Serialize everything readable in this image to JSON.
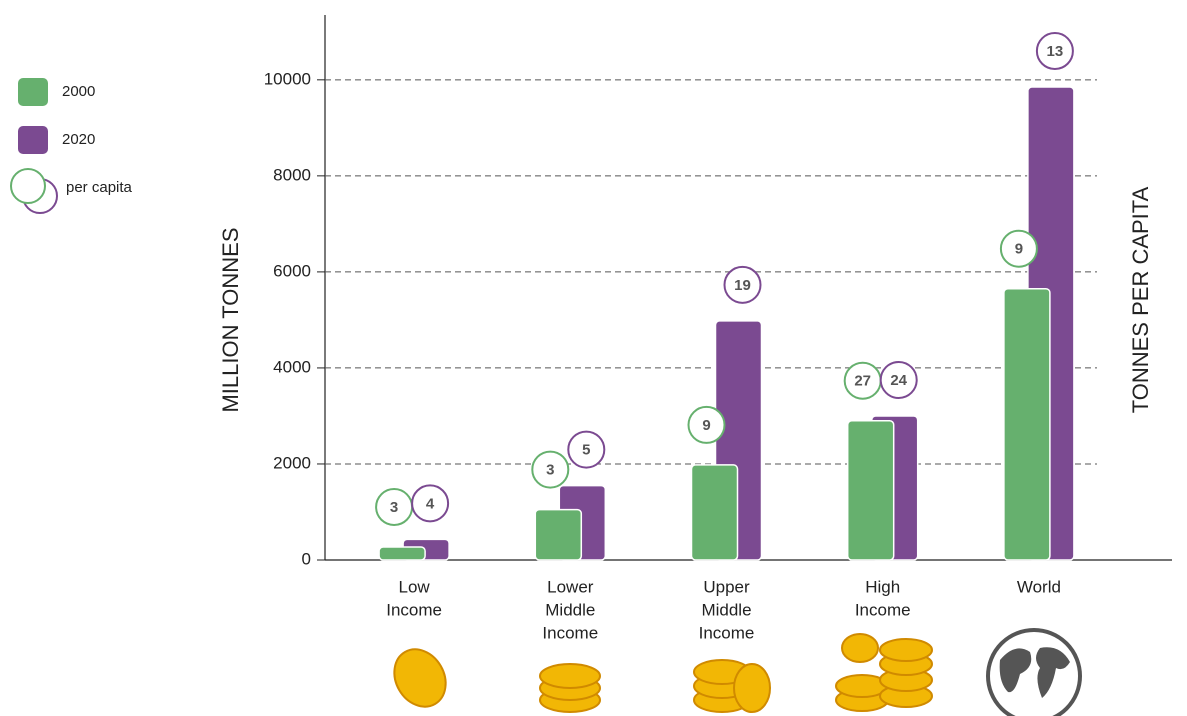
{
  "chart_data": {
    "type": "bar",
    "y_label": "MILLION TONNES",
    "y2_label": "TONNES PER CAPITA",
    "categories": [
      [
        "Low",
        "Income"
      ],
      [
        "Lower",
        "Middle",
        "Income"
      ],
      [
        "Upper",
        "Middle",
        "Income"
      ],
      [
        "High",
        "Income"
      ],
      [
        "World"
      ]
    ],
    "series": [
      {
        "name": "2000",
        "color": "#66b06e",
        "values": [
          270,
          1050,
          1980,
          2900,
          5650
        ],
        "per_capita": [
          3,
          3,
          9,
          27,
          9
        ]
      },
      {
        "name": "2020",
        "color": "#7b4a91",
        "values": [
          430,
          1550,
          4980,
          3000,
          9850
        ],
        "per_capita": [
          4,
          5,
          19,
          24,
          13
        ]
      }
    ],
    "per_capita_legend": "per capita",
    "ylim": [
      0,
      11350
    ],
    "yticks": [
      0,
      2000,
      4000,
      6000,
      8000,
      10000
    ],
    "grid": true
  }
}
